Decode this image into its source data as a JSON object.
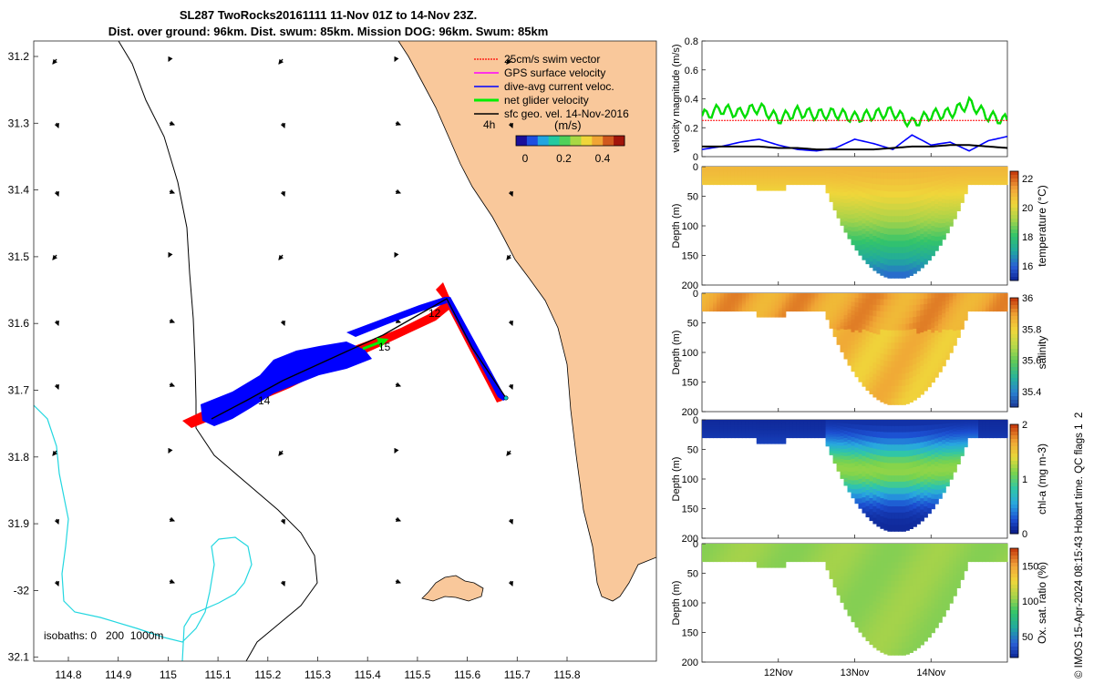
{
  "title": {
    "line1": "SL287 TwoRocks20161111 11-Nov 01Z to 14-Nov 23Z.",
    "line2": "Dist. over ground: 96km. Dist. swum: 85km. Mission DOG: 96km. Swum: 85km"
  },
  "map": {
    "lon_ticks": [
      "114.8",
      "114.9",
      "115",
      "115.1",
      "115.2",
      "115.3",
      "115.4",
      "115.5",
      "115.6",
      "115.7",
      "115.8"
    ],
    "lat_ticks": [
      "31.2",
      "31.3",
      "31.4",
      "31.5",
      "31.6",
      "31.7",
      "31.8",
      "31.9",
      "-32",
      "32.1"
    ],
    "legend": [
      {
        "label": "25cm/s swim vector",
        "color": "#ff0000"
      },
      {
        "label": "GPS surface velocity",
        "color": "#ff00ff"
      },
      {
        "label": "dive-avg current veloc.",
        "color": "#0000ff"
      },
      {
        "label": "net glider velocity",
        "color": "#00ee00"
      },
      {
        "label": "sfc geo. vel. 14-Nov-2016",
        "color": "#000000"
      }
    ],
    "arrow_scale_label": "4h",
    "colorbar_title": "(m/s)",
    "colorbar_ticks": [
      "0",
      "0.2",
      "0.4"
    ],
    "day_labels": [
      "12",
      "14",
      "15"
    ],
    "isobaths_label": "isobaths: 0   200  1000m",
    "land_color": "#f9c89b",
    "track_red": "#ff0000",
    "track_blue": "#0000ff"
  },
  "chart_data": [
    {
      "type": "line",
      "title": "velocity magnitude",
      "ylabel": "velocity magnitude (m/s)",
      "ylim": [
        0,
        0.8
      ],
      "yticks": [
        "0",
        "0.2",
        "0.4",
        "0.6",
        "0.8"
      ],
      "x": [
        11.0,
        11.25,
        11.5,
        11.75,
        12.0,
        12.25,
        12.5,
        12.75,
        13.0,
        13.25,
        13.5,
        13.75,
        14.0,
        14.25,
        14.5,
        14.75,
        15.0
      ],
      "series": [
        {
          "name": "net glider velocity",
          "color": "#00dd00",
          "values": [
            0.28,
            0.33,
            0.3,
            0.34,
            0.26,
            0.31,
            0.29,
            0.3,
            0.27,
            0.29,
            0.31,
            0.23,
            0.29,
            0.3,
            0.37,
            0.28,
            0.25
          ]
        },
        {
          "name": "25cm/s swim vector",
          "color": "#ff0000",
          "values": [
            0.25,
            0.25,
            0.25,
            0.25,
            0.25,
            0.25,
            0.25,
            0.25,
            0.25,
            0.25,
            0.25,
            0.25,
            0.25,
            0.25,
            0.25,
            0.25,
            0.25
          ]
        },
        {
          "name": "dive-avg current veloc.",
          "color": "#0000ff",
          "values": [
            0.05,
            0.07,
            0.1,
            0.12,
            0.08,
            0.05,
            0.04,
            0.06,
            0.12,
            0.09,
            0.05,
            0.15,
            0.08,
            0.1,
            0.04,
            0.11,
            0.14
          ]
        },
        {
          "name": "sfc geo. vel.",
          "color": "#000000",
          "values": [
            0.07,
            0.07,
            0.07,
            0.07,
            0.06,
            0.06,
            0.05,
            0.05,
            0.05,
            0.05,
            0.06,
            0.07,
            0.07,
            0.08,
            0.08,
            0.07,
            0.06
          ]
        }
      ]
    },
    {
      "type": "heatmap",
      "title": "temperature",
      "cbar_label": "temperature (°C)",
      "cbar_ticks": [
        "22",
        "20",
        "18",
        "16"
      ],
      "clim": [
        15,
        22.5
      ],
      "colormap": [
        "#0a1f8e",
        "#2a5fd6",
        "#21a8a0",
        "#33c46a",
        "#a7d34a",
        "#f0d63a",
        "#f2a33a",
        "#c8400f"
      ],
      "ylabel": "Depth (m)",
      "yticks": [
        "0",
        "50",
        "100",
        "150",
        "200"
      ],
      "surface_value": 21.0,
      "deep_value": 15.8
    },
    {
      "type": "heatmap",
      "title": "salinity",
      "cbar_label": "salinity",
      "cbar_ticks": [
        "36",
        "35.8",
        "35.6",
        "35.4"
      ],
      "clim": [
        35.3,
        36.0
      ],
      "colormap": [
        "#1a2e8e",
        "#2a7fd0",
        "#27b39b",
        "#5ec85a",
        "#b6d94a",
        "#f0d73b",
        "#f0a535",
        "#c8400f"
      ],
      "ylabel": "Depth (m)",
      "yticks": [
        "0",
        "50",
        "100",
        "150",
        "200"
      ],
      "surface_value": 35.85,
      "deep_value": 35.82
    },
    {
      "type": "heatmap",
      "title": "chl-a",
      "cbar_label": "chl-a (mg m-3)",
      "cbar_ticks": [
        "2",
        "1",
        "0"
      ],
      "clim": [
        0,
        2
      ],
      "colormap": [
        "#08137a",
        "#1c4fd1",
        "#28a6e0",
        "#30c7a6",
        "#7ad34d",
        "#e8d93a",
        "#f0a535",
        "#c8400f"
      ],
      "ylabel": "Depth (m)",
      "yticks": [
        "0",
        "50",
        "100",
        "150",
        "200"
      ],
      "surface_value": 0.15,
      "deep_value": 0.05
    },
    {
      "type": "heatmap",
      "title": "Ox. sat. ratio",
      "cbar_label": "Ox. sat. ratio (%)",
      "cbar_ticks": [
        "150",
        "100",
        "50"
      ],
      "clim": [
        20,
        175
      ],
      "colormap": [
        "#0a1f8e",
        "#2a5fd6",
        "#21a8a0",
        "#33c46a",
        "#a7d34a",
        "#f0d63a",
        "#f2a33a",
        "#c8400f"
      ],
      "ylabel": "Depth (m)",
      "yticks": [
        "0",
        "50",
        "100",
        "150",
        "200"
      ],
      "surface_value": 105,
      "deep_value": 102
    }
  ],
  "time_axis": {
    "ticks": [
      "12Nov",
      "13Nov",
      "14Nov"
    ],
    "range_days": [
      11.0,
      15.0
    ]
  },
  "credit": "© IMOS 15-Apr-2024 08:15:43 Hobart time. QC flags 1  2"
}
